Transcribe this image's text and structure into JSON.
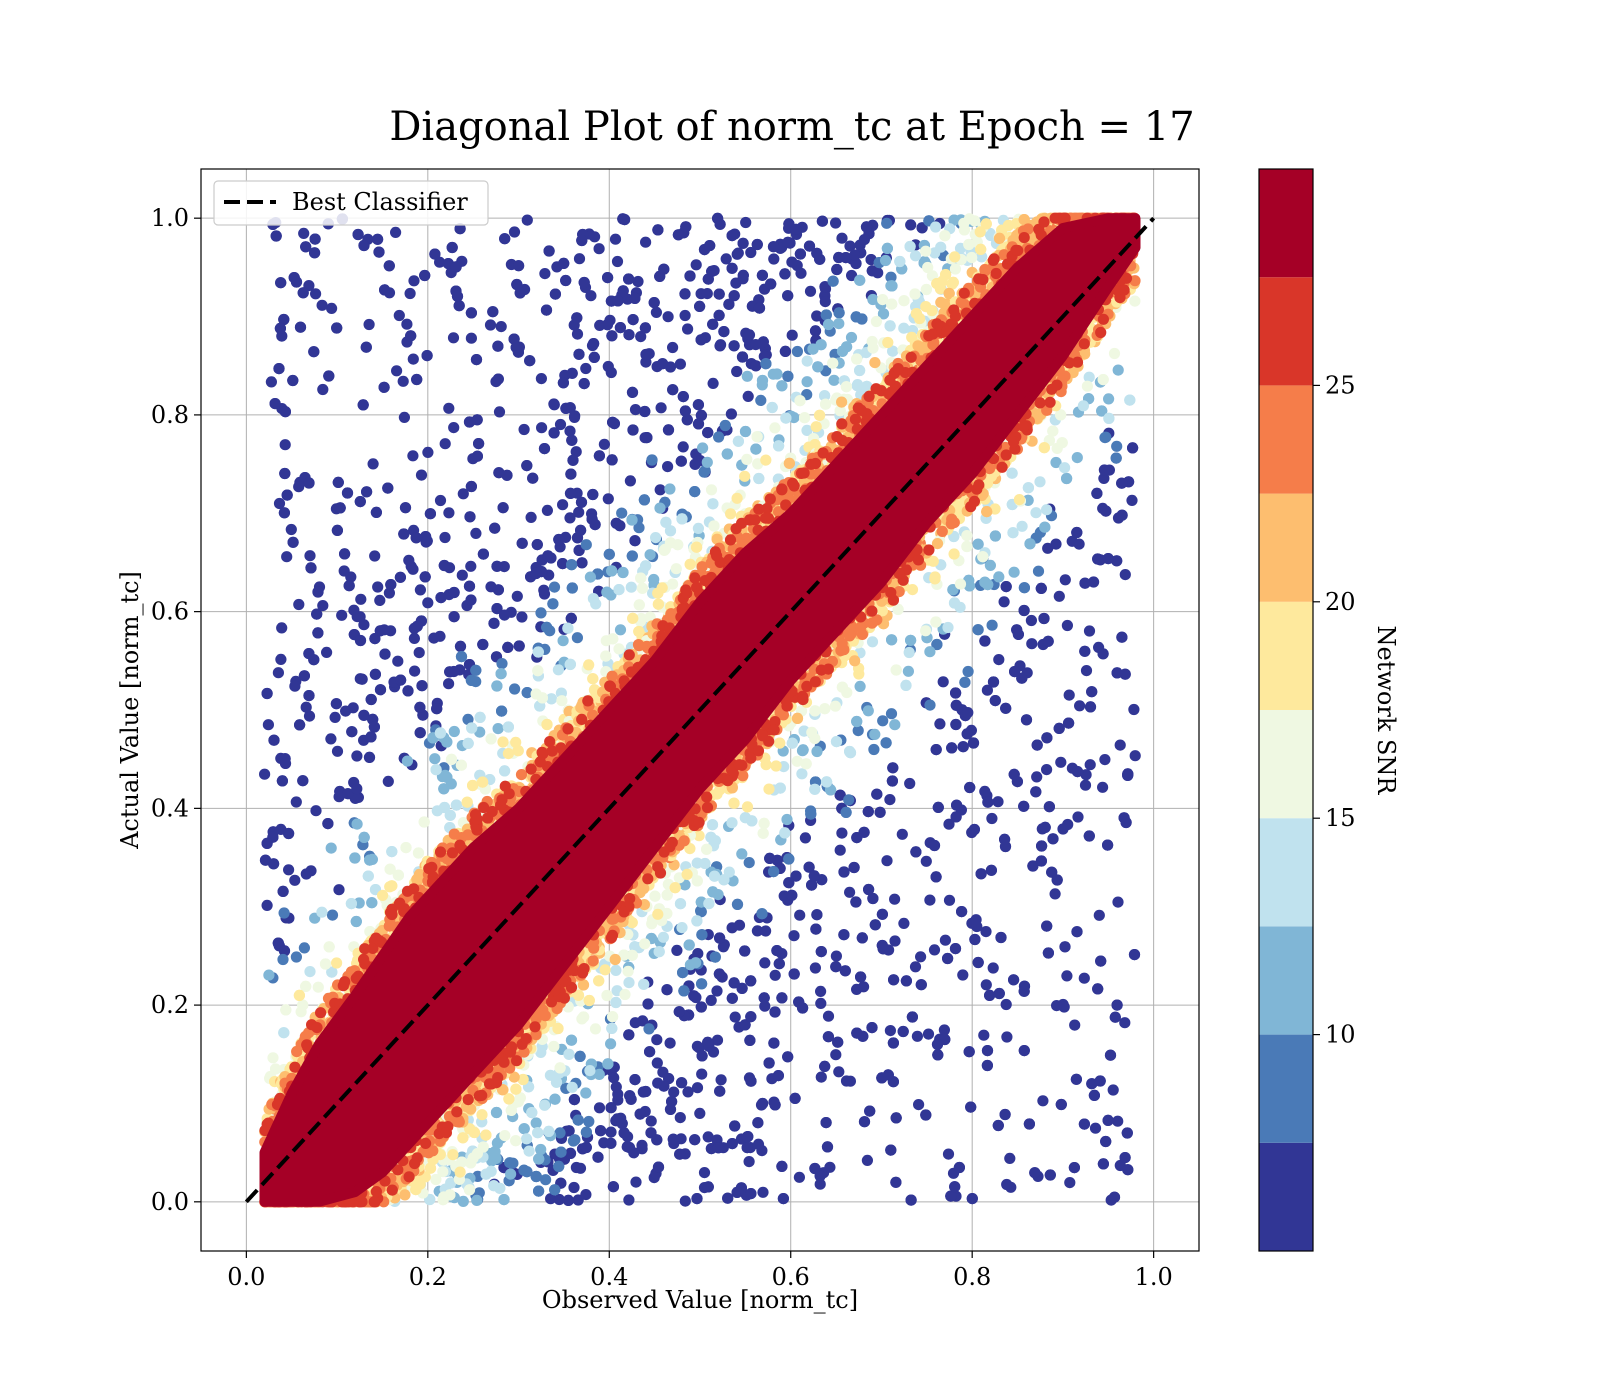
{
  "chart_data": {
    "type": "scatter",
    "title": "Diagonal Plot of norm_tc at Epoch = 17",
    "xlabel": "Observed Value [norm_tc]",
    "ylabel": "Actual Value [norm_tc]",
    "xlim": [
      -0.05,
      1.05
    ],
    "ylim": [
      -0.05,
      1.05
    ],
    "xticks": [
      "0.0",
      "0.2",
      "0.4",
      "0.6",
      "0.8",
      "1.0"
    ],
    "xtick_values": [
      0.0,
      0.2,
      0.4,
      0.6,
      0.8,
      1.0
    ],
    "yticks": [
      "0.0",
      "0.2",
      "0.4",
      "0.6",
      "0.8",
      "1.0"
    ],
    "ytick_values": [
      0.0,
      0.2,
      0.4,
      0.6,
      0.8,
      1.0
    ],
    "grid": true,
    "legend": {
      "placement": "upper-left",
      "entries": [
        "Best Classifier"
      ]
    },
    "reference_line": {
      "name": "Best Classifier",
      "style": "dashed",
      "color": "#000000",
      "x": [
        0.0,
        1.0
      ],
      "y": [
        0.0,
        1.0
      ]
    },
    "points_description_note": "",
    "color_scale": {
      "label": "Network SNR",
      "range": [
        5,
        30
      ],
      "bins": [
        {
          "from": 5.0,
          "to": 7.5,
          "color": "#313695"
        },
        {
          "from": 7.5,
          "to": 10.0,
          "color": "#4a7ab7"
        },
        {
          "from": 10.0,
          "to": 12.5,
          "color": "#80b6d6"
        },
        {
          "from": 12.5,
          "to": 15.0,
          "color": "#c0e2ee"
        },
        {
          "from": 15.0,
          "to": 17.5,
          "color": "#eff8e2"
        },
        {
          "from": 17.5,
          "to": 20.0,
          "color": "#fee99d"
        },
        {
          "from": 20.0,
          "to": 22.5,
          "color": "#fdbe6f"
        },
        {
          "from": 22.5,
          "to": 25.0,
          "color": "#f57d4a"
        },
        {
          "from": 25.0,
          "to": 27.5,
          "color": "#d93629"
        },
        {
          "from": 27.5,
          "to": 30.0,
          "color": "#a50026"
        }
      ],
      "ticks": [
        "10",
        "15",
        "20",
        "25"
      ],
      "tick_values": [
        10,
        15,
        20,
        25
      ]
    },
    "series": [
      {
        "band": "high-snr diagonal core",
        "snr": 29,
        "color": "#a50026",
        "x": [
          0.02,
          0.05,
          0.08,
          0.12,
          0.15,
          0.18,
          0.22,
          0.25,
          0.3,
          0.35,
          0.4,
          0.45,
          0.5,
          0.55,
          0.6,
          0.65,
          0.7,
          0.75,
          0.8,
          0.85,
          0.9,
          0.95,
          0.98
        ],
        "y_low": [
          0.0,
          0.0,
          0.0,
          0.01,
          0.03,
          0.06,
          0.1,
          0.13,
          0.18,
          0.24,
          0.3,
          0.36,
          0.42,
          0.47,
          0.53,
          0.58,
          0.63,
          0.69,
          0.74,
          0.8,
          0.86,
          0.93,
          0.97
        ],
        "y_high": [
          0.05,
          0.11,
          0.16,
          0.21,
          0.25,
          0.29,
          0.33,
          0.36,
          0.4,
          0.45,
          0.5,
          0.55,
          0.61,
          0.66,
          0.7,
          0.75,
          0.8,
          0.85,
          0.9,
          0.95,
          0.99,
          1.0,
          1.0
        ]
      }
    ],
    "outlier_density": {
      "description": "lower-SNR points scatter away from the diagonal, most dense at the upper-left above the band and lower-right below the band",
      "above_band_region": {
        "x": [
          0.15,
          0.95
        ],
        "y": [
          0.3,
          1.0
        ]
      },
      "below_band_region": {
        "x": [
          0.1,
          0.9
        ],
        "y": [
          0.0,
          0.65
        ]
      }
    }
  }
}
